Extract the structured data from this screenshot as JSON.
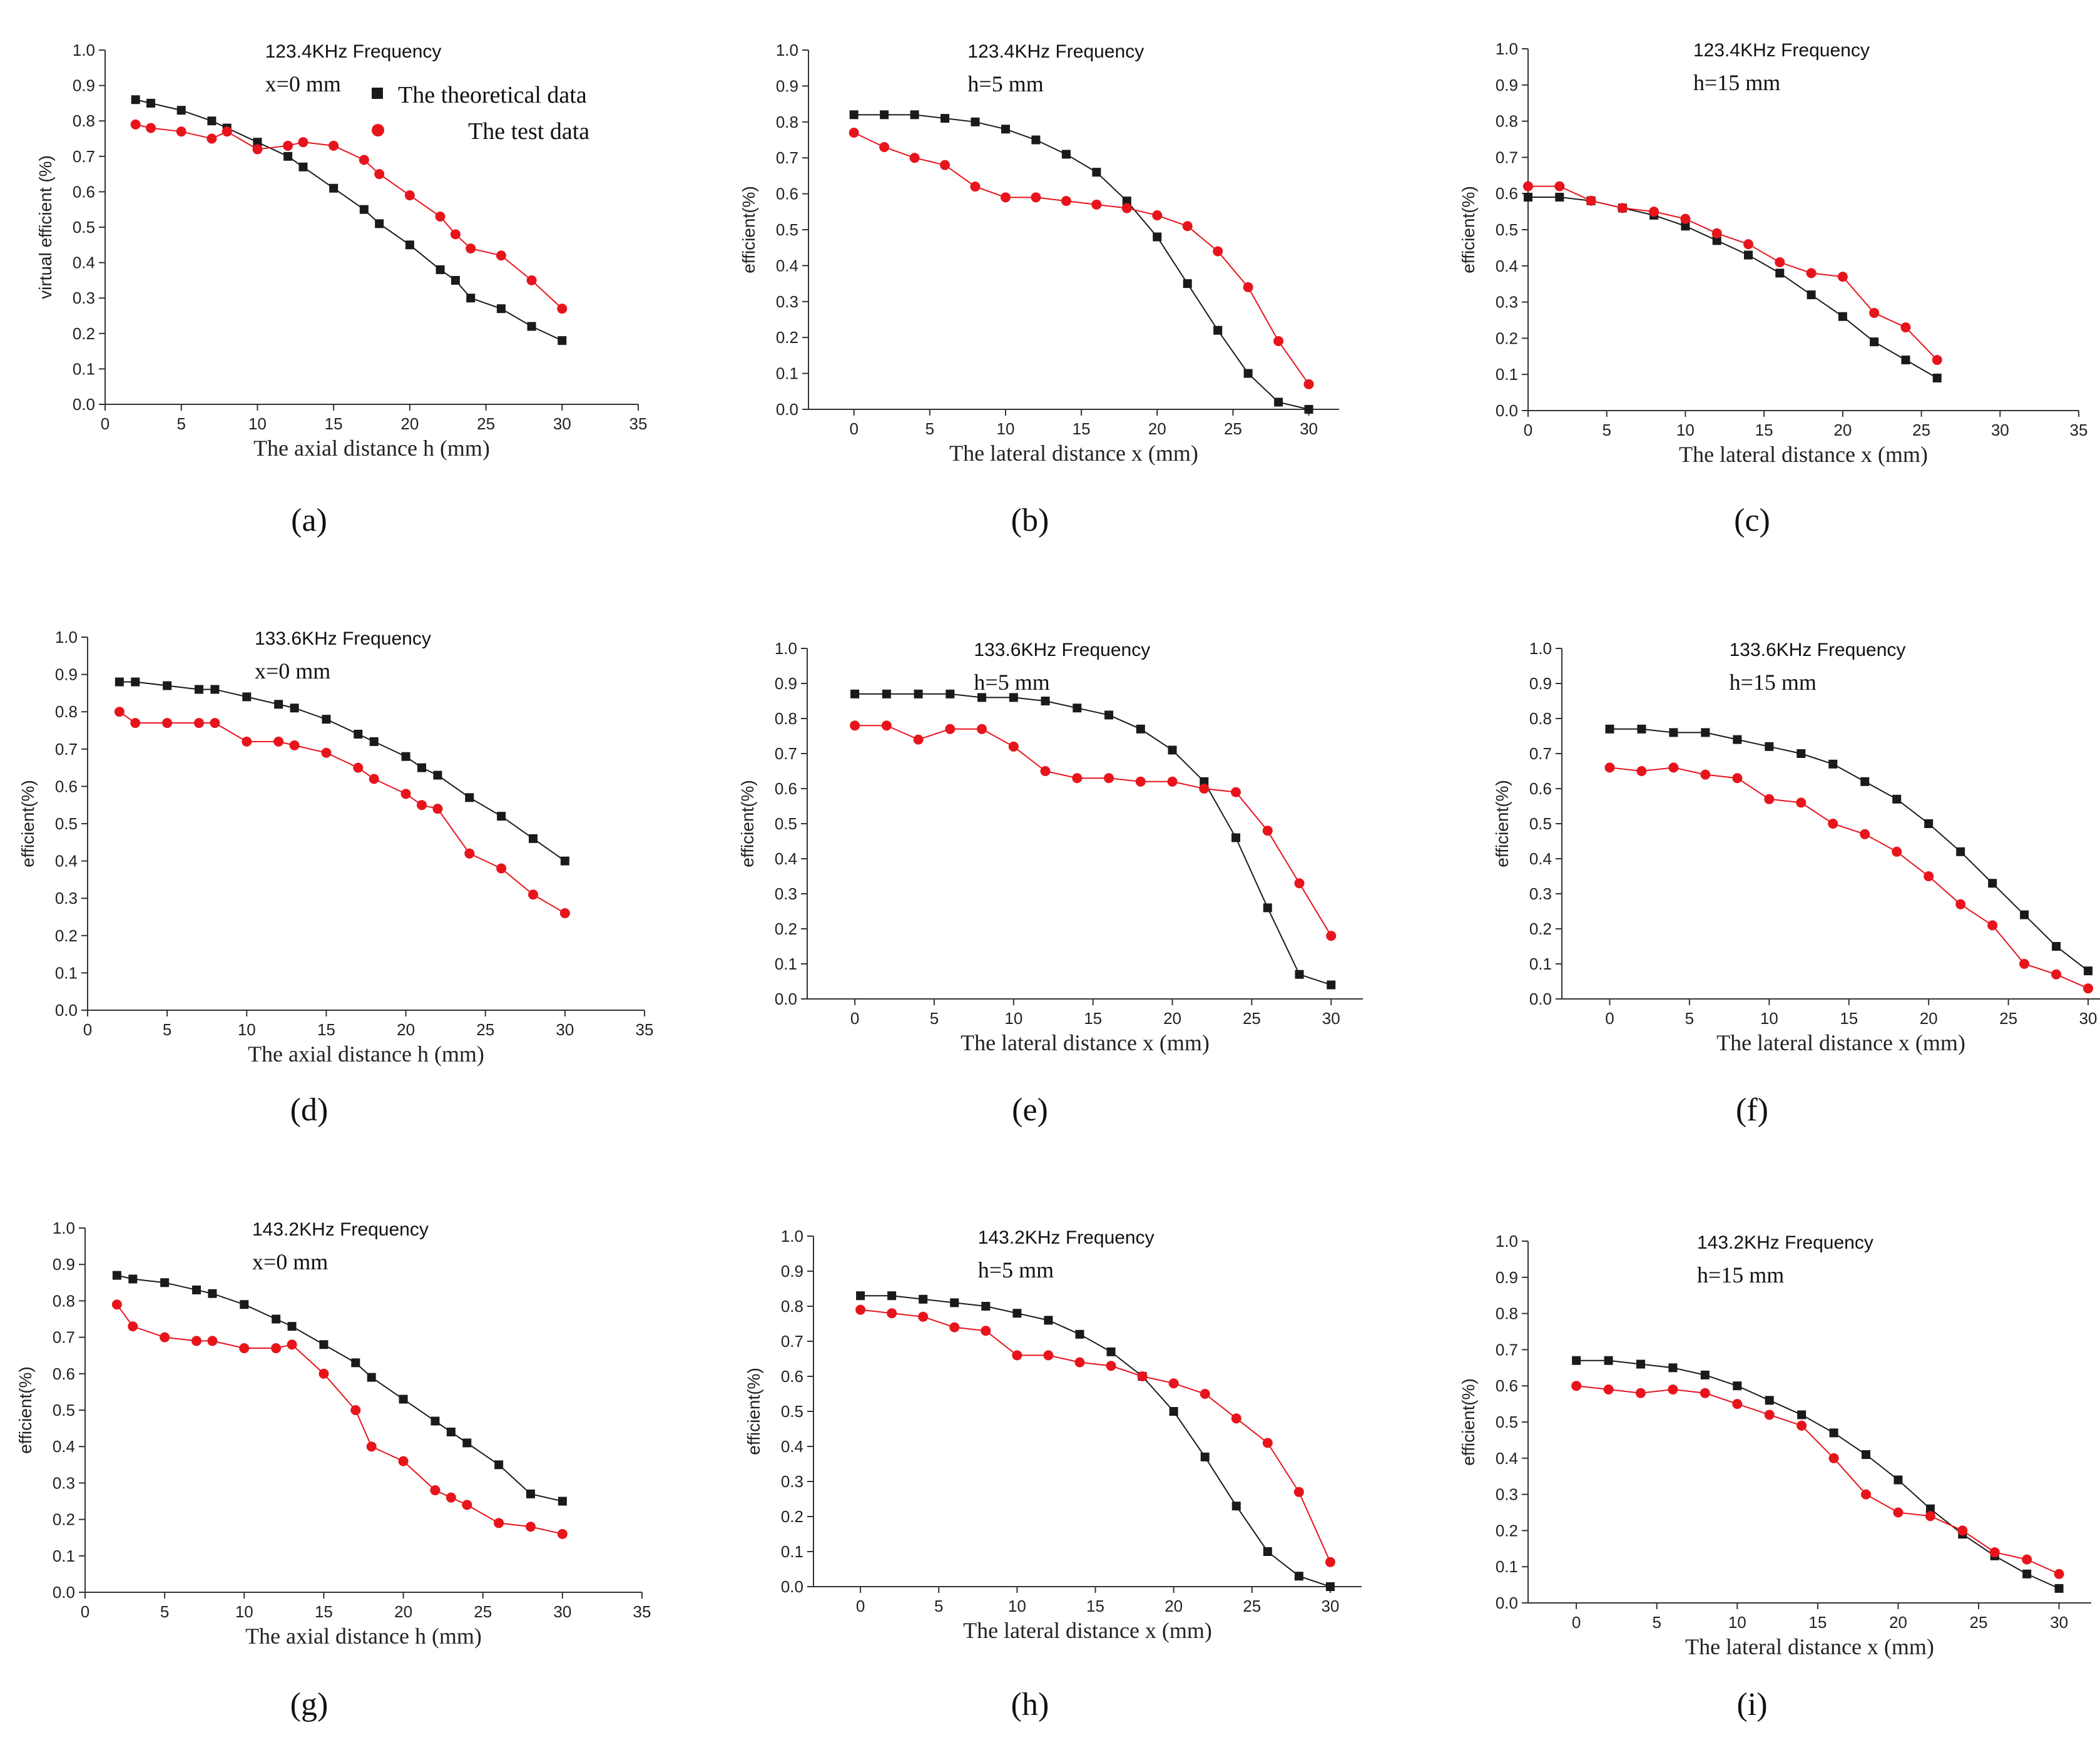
{
  "colors": {
    "theoretical": "#1a1a1a",
    "test": "#e8141c",
    "axis": "#333333"
  },
  "legend": {
    "theoretical": "The theoretical data",
    "test": "The test data"
  },
  "chart_data": [
    {
      "type": "line",
      "caption": "(a)",
      "title": "123.4KHz Frequency",
      "condition": "x=0 mm",
      "xlabel": "The axial distance h (mm)",
      "ylabel": "virtual efficient (%)",
      "xlim": [
        0,
        35
      ],
      "ylim": [
        0,
        1.0
      ],
      "xticks": [
        "0",
        "5",
        "10",
        "15",
        "20",
        "25",
        "30",
        "35"
      ],
      "yticks": [
        "0.0",
        "0.1",
        "0.2",
        "0.3",
        "0.4",
        "0.5",
        "0.6",
        "0.7",
        "0.8",
        "0.9",
        "1.0"
      ],
      "series": [
        {
          "name": "The theoretical data",
          "x": [
            2,
            3,
            5,
            7,
            8,
            10,
            12,
            13,
            15,
            17,
            18,
            20,
            22,
            23,
            24,
            26,
            28,
            30
          ],
          "y": [
            0.86,
            0.85,
            0.83,
            0.8,
            0.78,
            0.74,
            0.7,
            0.67,
            0.61,
            0.55,
            0.51,
            0.45,
            0.38,
            0.35,
            0.3,
            0.27,
            0.22,
            0.18
          ]
        },
        {
          "name": "The test data",
          "x": [
            2,
            3,
            5,
            7,
            8,
            10,
            12,
            13,
            15,
            17,
            18,
            20,
            22,
            23,
            24,
            26,
            28,
            30
          ],
          "y": [
            0.79,
            0.78,
            0.77,
            0.75,
            0.77,
            0.72,
            0.73,
            0.74,
            0.73,
            0.69,
            0.65,
            0.59,
            0.53,
            0.48,
            0.44,
            0.42,
            0.35,
            0.27
          ]
        }
      ]
    },
    {
      "type": "line",
      "caption": "(b)",
      "title": "123.4KHz Frequency",
      "condition": "h=5 mm",
      "xlabel": "The lateral distance x (mm)",
      "ylabel": "efficient(%)",
      "xlim": [
        -3,
        32
      ],
      "ylim": [
        0,
        1.0
      ],
      "xticks": [
        "0",
        "5",
        "10",
        "15",
        "20",
        "25",
        "30"
      ],
      "yticks": [
        "0.0",
        "0.1",
        "0.2",
        "0.3",
        "0.4",
        "0.5",
        "0.6",
        "0.7",
        "0.8",
        "0.9",
        "1.0"
      ],
      "series": [
        {
          "name": "The theoretical data",
          "x": [
            0,
            2,
            4,
            6,
            8,
            10,
            12,
            14,
            16,
            18,
            20,
            22,
            24,
            26,
            28,
            30
          ],
          "y": [
            0.82,
            0.82,
            0.82,
            0.81,
            0.8,
            0.78,
            0.75,
            0.71,
            0.66,
            0.58,
            0.48,
            0.35,
            0.22,
            0.1,
            0.02,
            0.0
          ]
        },
        {
          "name": "The test data",
          "x": [
            0,
            2,
            4,
            6,
            8,
            10,
            12,
            14,
            16,
            18,
            20,
            22,
            24,
            26,
            28,
            30
          ],
          "y": [
            0.77,
            0.73,
            0.7,
            0.68,
            0.62,
            0.59,
            0.59,
            0.58,
            0.57,
            0.56,
            0.54,
            0.51,
            0.44,
            0.34,
            0.19,
            0.07
          ]
        }
      ]
    },
    {
      "type": "line",
      "caption": "(c)",
      "title": "123.4KHz Frequency",
      "condition": "h=15 mm",
      "xlabel": "The lateral distance x (mm)",
      "ylabel": "efficient(%)",
      "xlim": [
        0,
        35
      ],
      "ylim": [
        0,
        1.0
      ],
      "xticks": [
        "0",
        "5",
        "10",
        "15",
        "20",
        "25",
        "30",
        "35"
      ],
      "yticks": [
        "0.0",
        "0.1",
        "0.2",
        "0.3",
        "0.4",
        "0.5",
        "0.6",
        "0.7",
        "0.8",
        "0.9",
        "1.0"
      ],
      "series": [
        {
          "name": "The theoretical data",
          "x": [
            0,
            2,
            4,
            6,
            8,
            10,
            12,
            14,
            16,
            18,
            20,
            22,
            24,
            26
          ],
          "y": [
            0.59,
            0.59,
            0.58,
            0.56,
            0.54,
            0.51,
            0.47,
            0.43,
            0.38,
            0.32,
            0.26,
            0.19,
            0.14,
            0.09
          ]
        },
        {
          "name": "The test data",
          "x": [
            0,
            2,
            4,
            6,
            8,
            10,
            12,
            14,
            16,
            18,
            20,
            22,
            24,
            26
          ],
          "y": [
            0.62,
            0.62,
            0.58,
            0.56,
            0.55,
            0.53,
            0.49,
            0.46,
            0.41,
            0.38,
            0.37,
            0.27,
            0.23,
            0.14
          ]
        }
      ]
    },
    {
      "type": "line",
      "caption": "(d)",
      "title": "133.6KHz Frequency",
      "condition": "x=0 mm",
      "xlabel": "The axial distance h (mm)",
      "ylabel": "efficient(%)",
      "xlim": [
        0,
        35
      ],
      "ylim": [
        0,
        1.0
      ],
      "xticks": [
        "0",
        "5",
        "10",
        "15",
        "20",
        "25",
        "30",
        "35"
      ],
      "yticks": [
        "0.0",
        "0.1",
        "0.2",
        "0.3",
        "0.4",
        "0.5",
        "0.6",
        "0.7",
        "0.8",
        "0.9",
        "1.0"
      ],
      "series": [
        {
          "name": "The theoretical data",
          "x": [
            2,
            3,
            5,
            7,
            8,
            10,
            12,
            13,
            15,
            17,
            18,
            20,
            21,
            22,
            24,
            26,
            28,
            30
          ],
          "y": [
            0.88,
            0.88,
            0.87,
            0.86,
            0.86,
            0.84,
            0.82,
            0.81,
            0.78,
            0.74,
            0.72,
            0.68,
            0.65,
            0.63,
            0.57,
            0.52,
            0.46,
            0.4
          ]
        },
        {
          "name": "The test data",
          "x": [
            2,
            3,
            5,
            7,
            8,
            10,
            12,
            13,
            15,
            17,
            18,
            20,
            21,
            22,
            24,
            26,
            28,
            30
          ],
          "y": [
            0.8,
            0.77,
            0.77,
            0.77,
            0.77,
            0.72,
            0.72,
            0.71,
            0.69,
            0.65,
            0.62,
            0.58,
            0.55,
            0.54,
            0.42,
            0.38,
            0.31,
            0.26
          ]
        }
      ]
    },
    {
      "type": "line",
      "caption": "(e)",
      "title": "133.6KHz Frequency",
      "condition": "h=5 mm",
      "xlabel": "The lateral distance x (mm)",
      "ylabel": "efficient(%)",
      "xlim": [
        -3,
        32
      ],
      "ylim": [
        0,
        1.0
      ],
      "xticks": [
        "0",
        "5",
        "10",
        "15",
        "20",
        "25",
        "30"
      ],
      "yticks": [
        "0.0",
        "0.1",
        "0.2",
        "0.3",
        "0.4",
        "0.5",
        "0.6",
        "0.7",
        "0.8",
        "0.9",
        "1.0"
      ],
      "series": [
        {
          "name": "The theoretical data",
          "x": [
            0,
            2,
            4,
            6,
            8,
            10,
            12,
            14,
            16,
            18,
            20,
            22,
            24,
            26,
            28,
            30
          ],
          "y": [
            0.87,
            0.87,
            0.87,
            0.87,
            0.86,
            0.86,
            0.85,
            0.83,
            0.81,
            0.77,
            0.71,
            0.62,
            0.46,
            0.26,
            0.07,
            0.04
          ]
        },
        {
          "name": "The test data",
          "x": [
            0,
            2,
            4,
            6,
            8,
            10,
            12,
            14,
            16,
            18,
            20,
            22,
            24,
            26,
            28,
            30
          ],
          "y": [
            0.78,
            0.78,
            0.74,
            0.77,
            0.77,
            0.72,
            0.65,
            0.63,
            0.63,
            0.62,
            0.62,
            0.6,
            0.59,
            0.48,
            0.33,
            0.18
          ]
        }
      ]
    },
    {
      "type": "line",
      "caption": "(f)",
      "title": "133.6KHz Frequency",
      "condition": "h=15 mm",
      "xlabel": "The lateral distance x (mm)",
      "ylabel": "efficient(%)",
      "xlim": [
        -3,
        32
      ],
      "ylim": [
        0,
        1.0
      ],
      "xticks": [
        "0",
        "5",
        "10",
        "15",
        "20",
        "25",
        "30"
      ],
      "yticks": [
        "0.0",
        "0.1",
        "0.2",
        "0.3",
        "0.4",
        "0.5",
        "0.6",
        "0.7",
        "0.8",
        "0.9",
        "1.0"
      ],
      "series": [
        {
          "name": "The theoretical data",
          "x": [
            0,
            2,
            4,
            6,
            8,
            10,
            12,
            14,
            16,
            18,
            20,
            22,
            24,
            26,
            28,
            30
          ],
          "y": [
            0.77,
            0.77,
            0.76,
            0.76,
            0.74,
            0.72,
            0.7,
            0.67,
            0.62,
            0.57,
            0.5,
            0.42,
            0.33,
            0.24,
            0.15,
            0.08
          ]
        },
        {
          "name": "The test data",
          "x": [
            0,
            2,
            4,
            6,
            8,
            10,
            12,
            14,
            16,
            18,
            20,
            22,
            24,
            26,
            28,
            30
          ],
          "y": [
            0.66,
            0.65,
            0.66,
            0.64,
            0.63,
            0.57,
            0.56,
            0.5,
            0.47,
            0.42,
            0.35,
            0.27,
            0.21,
            0.1,
            0.07,
            0.03
          ]
        }
      ]
    },
    {
      "type": "line",
      "caption": "(g)",
      "title": "143.2KHz Frequency",
      "condition": "x=0 mm",
      "xlabel": "The axial distance h (mm)",
      "ylabel": "efficient(%)",
      "xlim": [
        0,
        35
      ],
      "ylim": [
        0,
        1.0
      ],
      "xticks": [
        "0",
        "5",
        "10",
        "15",
        "20",
        "25",
        "30",
        "35"
      ],
      "yticks": [
        "0.0",
        "0.1",
        "0.2",
        "0.3",
        "0.4",
        "0.5",
        "0.6",
        "0.7",
        "0.8",
        "0.9",
        "1.0"
      ],
      "series": [
        {
          "name": "The theoretical data",
          "x": [
            2,
            3,
            5,
            7,
            8,
            10,
            12,
            13,
            15,
            17,
            18,
            20,
            22,
            23,
            24,
            26,
            28,
            30
          ],
          "y": [
            0.87,
            0.86,
            0.85,
            0.83,
            0.82,
            0.79,
            0.75,
            0.73,
            0.68,
            0.63,
            0.59,
            0.53,
            0.47,
            0.44,
            0.41,
            0.35,
            0.27,
            0.25
          ]
        },
        {
          "name": "The test data",
          "x": [
            2,
            3,
            5,
            7,
            8,
            10,
            12,
            13,
            15,
            17,
            18,
            20,
            22,
            23,
            24,
            26,
            28,
            30
          ],
          "y": [
            0.79,
            0.73,
            0.7,
            0.69,
            0.69,
            0.67,
            0.67,
            0.68,
            0.6,
            0.5,
            0.4,
            0.36,
            0.28,
            0.26,
            0.24,
            0.19,
            0.18,
            0.16
          ]
        }
      ]
    },
    {
      "type": "line",
      "caption": "(h)",
      "title": "143.2KHz Frequency",
      "condition": "h=5 mm",
      "xlabel": "The lateral distance x (mm)",
      "ylabel": "efficient(%)",
      "xlim": [
        -3,
        32
      ],
      "ylim": [
        0,
        1.0
      ],
      "xticks": [
        "0",
        "5",
        "10",
        "15",
        "20",
        "25",
        "30"
      ],
      "yticks": [
        "0.0",
        "0.1",
        "0.2",
        "0.3",
        "0.4",
        "0.5",
        "0.6",
        "0.7",
        "0.8",
        "0.9",
        "1.0"
      ],
      "series": [
        {
          "name": "The theoretical data",
          "x": [
            0,
            2,
            4,
            6,
            8,
            10,
            12,
            14,
            16,
            18,
            20,
            22,
            24,
            26,
            28,
            30
          ],
          "y": [
            0.83,
            0.83,
            0.82,
            0.81,
            0.8,
            0.78,
            0.76,
            0.72,
            0.67,
            0.6,
            0.5,
            0.37,
            0.23,
            0.1,
            0.03,
            0.0
          ]
        },
        {
          "name": "The test data",
          "x": [
            0,
            2,
            4,
            6,
            8,
            10,
            12,
            14,
            16,
            18,
            20,
            22,
            24,
            26,
            28,
            30
          ],
          "y": [
            0.79,
            0.78,
            0.77,
            0.74,
            0.73,
            0.66,
            0.66,
            0.64,
            0.63,
            0.6,
            0.58,
            0.55,
            0.48,
            0.41,
            0.27,
            0.07
          ]
        }
      ]
    },
    {
      "type": "line",
      "caption": "(i)",
      "title": "143.2KHz Frequency",
      "condition": "h=15 mm",
      "xlabel": "The lateral distance x (mm)",
      "ylabel": "efficient(%)",
      "xlim": [
        -3,
        32
      ],
      "ylim": [
        0,
        1.0
      ],
      "xticks": [
        "0",
        "5",
        "10",
        "15",
        "20",
        "25",
        "30"
      ],
      "yticks": [
        "0.0",
        "0.1",
        "0.2",
        "0.3",
        "0.4",
        "0.5",
        "0.6",
        "0.7",
        "0.8",
        "0.9",
        "1.0"
      ],
      "series": [
        {
          "name": "The theoretical data",
          "x": [
            0,
            2,
            4,
            6,
            8,
            10,
            12,
            14,
            16,
            18,
            20,
            22,
            24,
            26,
            28,
            30
          ],
          "y": [
            0.67,
            0.67,
            0.66,
            0.65,
            0.63,
            0.6,
            0.56,
            0.52,
            0.47,
            0.41,
            0.34,
            0.26,
            0.19,
            0.13,
            0.08,
            0.04
          ]
        },
        {
          "name": "The test data",
          "x": [
            0,
            2,
            4,
            6,
            8,
            10,
            12,
            14,
            16,
            18,
            20,
            22,
            24,
            26,
            28,
            30
          ],
          "y": [
            0.6,
            0.59,
            0.58,
            0.59,
            0.58,
            0.55,
            0.52,
            0.49,
            0.4,
            0.3,
            0.25,
            0.24,
            0.2,
            0.14,
            0.12,
            0.08
          ]
        }
      ]
    }
  ]
}
